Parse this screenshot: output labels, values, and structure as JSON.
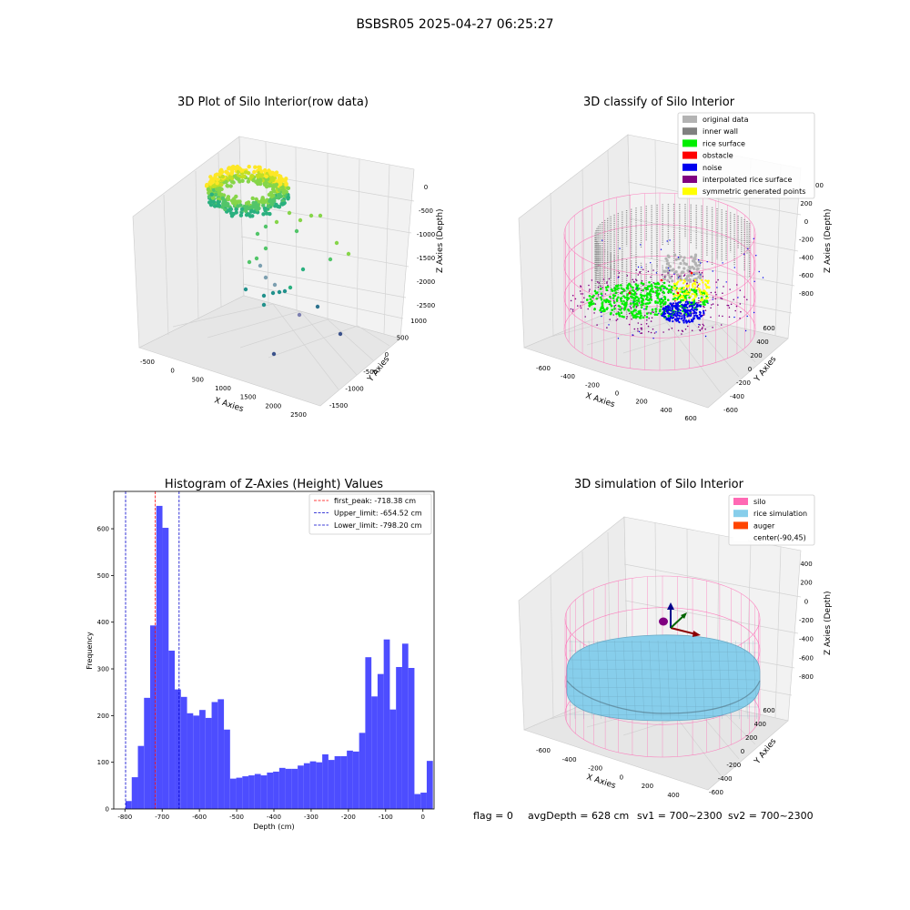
{
  "page": {
    "suptitle": "BSBSR05 2025-04-27 06:25:27",
    "footer": {
      "flag": "flag = 0",
      "avg": "avgDepth = 628 cm",
      "sv1": "sv1 = 700~2300",
      "sv2": "sv2 = 700~2300"
    }
  },
  "chart_data": [
    {
      "type": "scatter",
      "title": "3D Plot of Silo Interior(row data)",
      "xlabel": "X Axies",
      "ylabel": "Y Axies",
      "zlabel": "Z Axies (Depth)",
      "x_ticks": [
        "-500",
        "0",
        "500",
        "1000",
        "1500",
        "2000",
        "2500"
      ],
      "y_ticks": [
        "-1500",
        "-1000",
        "-500",
        "0",
        "500",
        "1000"
      ],
      "z_ticks": [
        "0",
        "-500",
        "-1000",
        "-1500",
        "-2000",
        "-2500"
      ]
    },
    {
      "type": "scatter",
      "title": "3D classify of Silo Interior",
      "xlabel": "X Axies",
      "ylabel": "Y Axies",
      "zlabel": "Z Axies (Depth)",
      "x_ticks": [
        "-600",
        "-400",
        "-200",
        "0",
        "200",
        "400",
        "600"
      ],
      "y_ticks": [
        "-600",
        "-400",
        "-200",
        "0",
        "200",
        "400",
        "600"
      ],
      "z_ticks": [
        "200",
        "0",
        "-200",
        "-400",
        "-600",
        "-800"
      ],
      "z_top_tick": "00",
      "legend": [
        {
          "name": "original data",
          "color": "#b3b3b3"
        },
        {
          "name": "inner wall",
          "color": "#808080"
        },
        {
          "name": "rice surface",
          "color": "#00ee00"
        },
        {
          "name": "obstacle",
          "color": "#ff0000"
        },
        {
          "name": "noise",
          "color": "#0000ee"
        },
        {
          "name": "interpolated rice surface",
          "color": "#800080"
        },
        {
          "name": "symmetric generated points",
          "color": "#ffff00"
        }
      ]
    },
    {
      "type": "bar",
      "title": "Histogram of Z-Axies (Height) Values",
      "xlabel": "Depth (cm)",
      "ylabel": "Frequency",
      "xlim": [
        -830,
        30
      ],
      "ylim": [
        0,
        680
      ],
      "x_ticks": [
        -800,
        -700,
        -600,
        -500,
        -400,
        -300,
        -200,
        -100,
        0
      ],
      "y_ticks": [
        0,
        100,
        200,
        300,
        400,
        500,
        600
      ],
      "bin_width": 16.5,
      "bin_start": -798.2,
      "values": [
        17,
        68,
        135,
        238,
        393,
        649,
        602,
        339,
        256,
        240,
        205,
        200,
        212,
        195,
        229,
        235,
        170,
        65,
        67,
        70,
        72,
        75,
        72,
        78,
        80,
        88,
        86,
        86,
        93,
        98,
        102,
        100,
        117,
        105,
        113,
        113,
        125,
        123,
        163,
        325,
        241,
        289,
        363,
        213,
        304,
        354,
        302,
        32,
        35,
        103
      ],
      "bar_color": "#4d4dff",
      "vlines": [
        {
          "label": "first_peak: -718.38 cm",
          "x": -718.38,
          "color": "#ff0000"
        },
        {
          "label": "Upper_limit: -654.52 cm",
          "x": -654.52,
          "color": "#0000cc"
        },
        {
          "label": "Lower_limit: -798.20 cm",
          "x": -798.2,
          "color": "#0000cc"
        }
      ]
    },
    {
      "type": "scatter",
      "title": "3D simulation of Silo Interior",
      "xlabel": "X Axies",
      "ylabel": "Y Axies",
      "zlabel": "Z Axies (Depth)",
      "x_ticks": [
        "-600",
        "-400",
        "-200",
        "0",
        "200",
        "400"
      ],
      "y_ticks": [
        "-600",
        "-400",
        "-200",
        "0",
        "200",
        "400",
        "600"
      ],
      "z_ticks": [
        "400",
        "200",
        "0",
        "-200",
        "-400",
        "-600",
        "-800"
      ],
      "legend": [
        {
          "name": "silo",
          "color": "#ff69b4"
        },
        {
          "name": "rice simulation",
          "color": "#87ceeb"
        },
        {
          "name": "auger",
          "color": "#ff4500"
        },
        {
          "name": "center(-90,45)",
          "color": "#ffffff"
        }
      ]
    }
  ]
}
